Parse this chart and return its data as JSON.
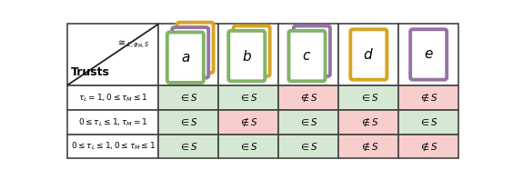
{
  "col_labels": [
    "a",
    "b",
    "c",
    "d",
    "e"
  ],
  "cell_data": [
    [
      "∈ S",
      "∈ S",
      "∉ S",
      "∈ S",
      "∉ S"
    ],
    [
      "∈ S",
      "∉ S",
      "∈ S",
      "∉ S",
      "∈ S"
    ],
    [
      "∈ S",
      "∈ S",
      "∈ S",
      "∉ S",
      "∉ S"
    ]
  ],
  "cell_colors": [
    [
      "#d5e8d4",
      "#d5e8d4",
      "#f8cecc",
      "#d5e8d4",
      "#f8cecc"
    ],
    [
      "#d5e8d4",
      "#f8cecc",
      "#d5e8d4",
      "#f8cecc",
      "#d5e8d4"
    ],
    [
      "#d5e8d4",
      "#d5e8d4",
      "#d5e8d4",
      "#f8cecc",
      "#f8cecc"
    ]
  ],
  "green": "#82b366",
  "gold": "#d6a520",
  "purple": "#9673a6",
  "icon_stacks": [
    [
      "gold",
      "purple",
      "green"
    ],
    [
      "gold",
      "green"
    ],
    [
      "purple",
      "green"
    ],
    [
      "gold"
    ],
    [
      "purple"
    ]
  ],
  "row_label_texts": [
    "$\\tau_L = 1, 0 \\leq \\tau_M \\leq 1$",
    "$0 \\leq \\tau_L \\leq 1, \\tau_M = 1$",
    "$0 \\leq \\tau_L \\leq 1, 0 \\leq \\tau_M \\leq 1$"
  ],
  "fig_bg": "#ffffff",
  "border_color": "#444444"
}
